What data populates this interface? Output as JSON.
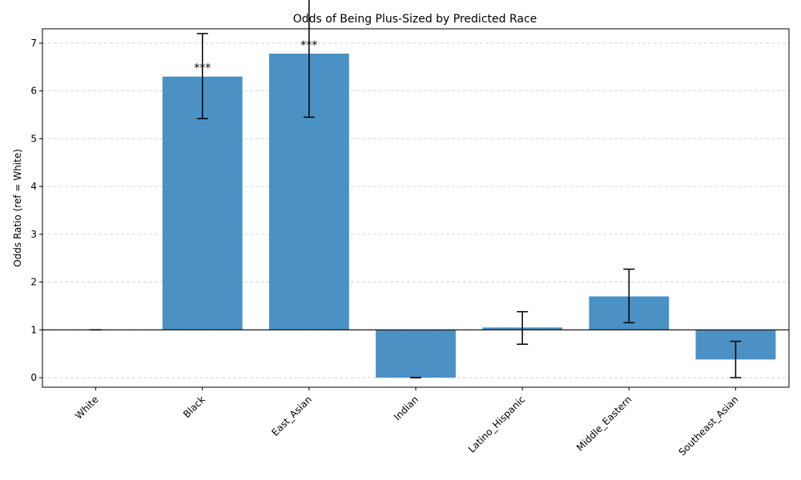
{
  "chart_data": {
    "type": "bar",
    "title": "Odds of Being Plus-Sized by Predicted Race",
    "xlabel": "",
    "ylabel": "Odds Ratio (ref = White)",
    "categories": [
      "White",
      "Black",
      "East_Asian",
      "Indian",
      "Latino_Hispanic",
      "Middle_Eastern",
      "Southeast_Asian"
    ],
    "values": [
      1.0,
      6.3,
      6.78,
      0.0,
      1.05,
      1.7,
      0.38
    ],
    "ci_low": [
      1.0,
      5.42,
      5.45,
      0.0,
      0.7,
      1.15,
      0.0
    ],
    "ci_high": [
      1.0,
      7.2,
      8.4,
      0.0,
      1.38,
      2.27,
      0.76
    ],
    "significance": [
      "",
      "***",
      "***",
      "",
      "",
      "",
      ""
    ],
    "baseline": 1,
    "ylim": [
      -0.2,
      7.3
    ],
    "yticks": [
      0,
      1,
      2,
      3,
      4,
      5,
      6,
      7
    ],
    "grid": true,
    "bar_color": "#4b91c3"
  }
}
